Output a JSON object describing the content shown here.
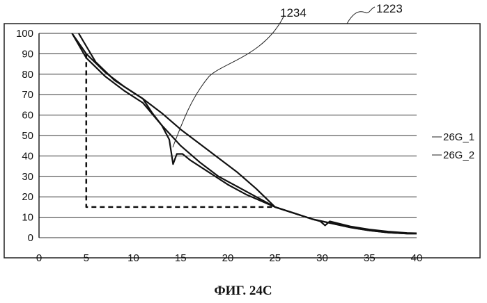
{
  "caption": "ФИГ. 24C",
  "frame_label": "1223",
  "callout_label": "1234",
  "chart_data": {
    "type": "line",
    "title": "",
    "xlabel": "",
    "ylabel": "",
    "xlim": [
      0,
      40
    ],
    "ylim": [
      0,
      100
    ],
    "x_ticks": [
      0,
      5,
      10,
      15,
      20,
      25,
      30,
      35,
      40
    ],
    "y_ticks": [
      0,
      10,
      20,
      30,
      40,
      50,
      60,
      70,
      80,
      90,
      100
    ],
    "grid": "horizontal",
    "series": [
      {
        "name": "26G_1",
        "x": [
          3.5,
          5,
          7,
          9,
          11,
          13,
          15,
          17,
          19,
          21,
          23,
          25,
          27,
          29,
          31,
          33,
          35,
          37,
          39,
          41
        ],
        "y": [
          100,
          90,
          81,
          74,
          68,
          61,
          53,
          46,
          39,
          32,
          24,
          15,
          12,
          9,
          7,
          5,
          3.5,
          2.5,
          2,
          2
        ]
      },
      {
        "name": "26G_2",
        "x": [
          4.2,
          6,
          8,
          10,
          11,
          12,
          13,
          13.8,
          14.2,
          14.6,
          15.2,
          16,
          18,
          20,
          22,
          24,
          25,
          27,
          29,
          29.8,
          30.3,
          30.8,
          33,
          35,
          37,
          39,
          41
        ],
        "y": [
          100,
          86,
          77,
          71,
          68,
          61,
          55,
          48,
          36,
          41,
          41,
          38,
          32,
          26,
          21,
          17,
          15,
          12,
          9,
          8,
          6,
          8,
          5.5,
          4,
          3,
          2.3,
          2
        ]
      },
      {
        "name": "",
        "x": [
          3.5,
          5,
          7,
          9,
          11,
          13,
          15,
          17,
          19,
          21,
          23,
          25,
          27,
          29,
          31,
          33,
          35,
          37,
          39,
          41
        ],
        "y": [
          100,
          88,
          79,
          72,
          66,
          55,
          45,
          37,
          30,
          25,
          20,
          15,
          12,
          9,
          7,
          5,
          3.5,
          2.5,
          2,
          2
        ]
      },
      {
        "name": "",
        "dashed": true,
        "x": [
          5,
          5,
          25
        ],
        "y": [
          90,
          15,
          15
        ]
      }
    ],
    "legend_position": "right"
  }
}
